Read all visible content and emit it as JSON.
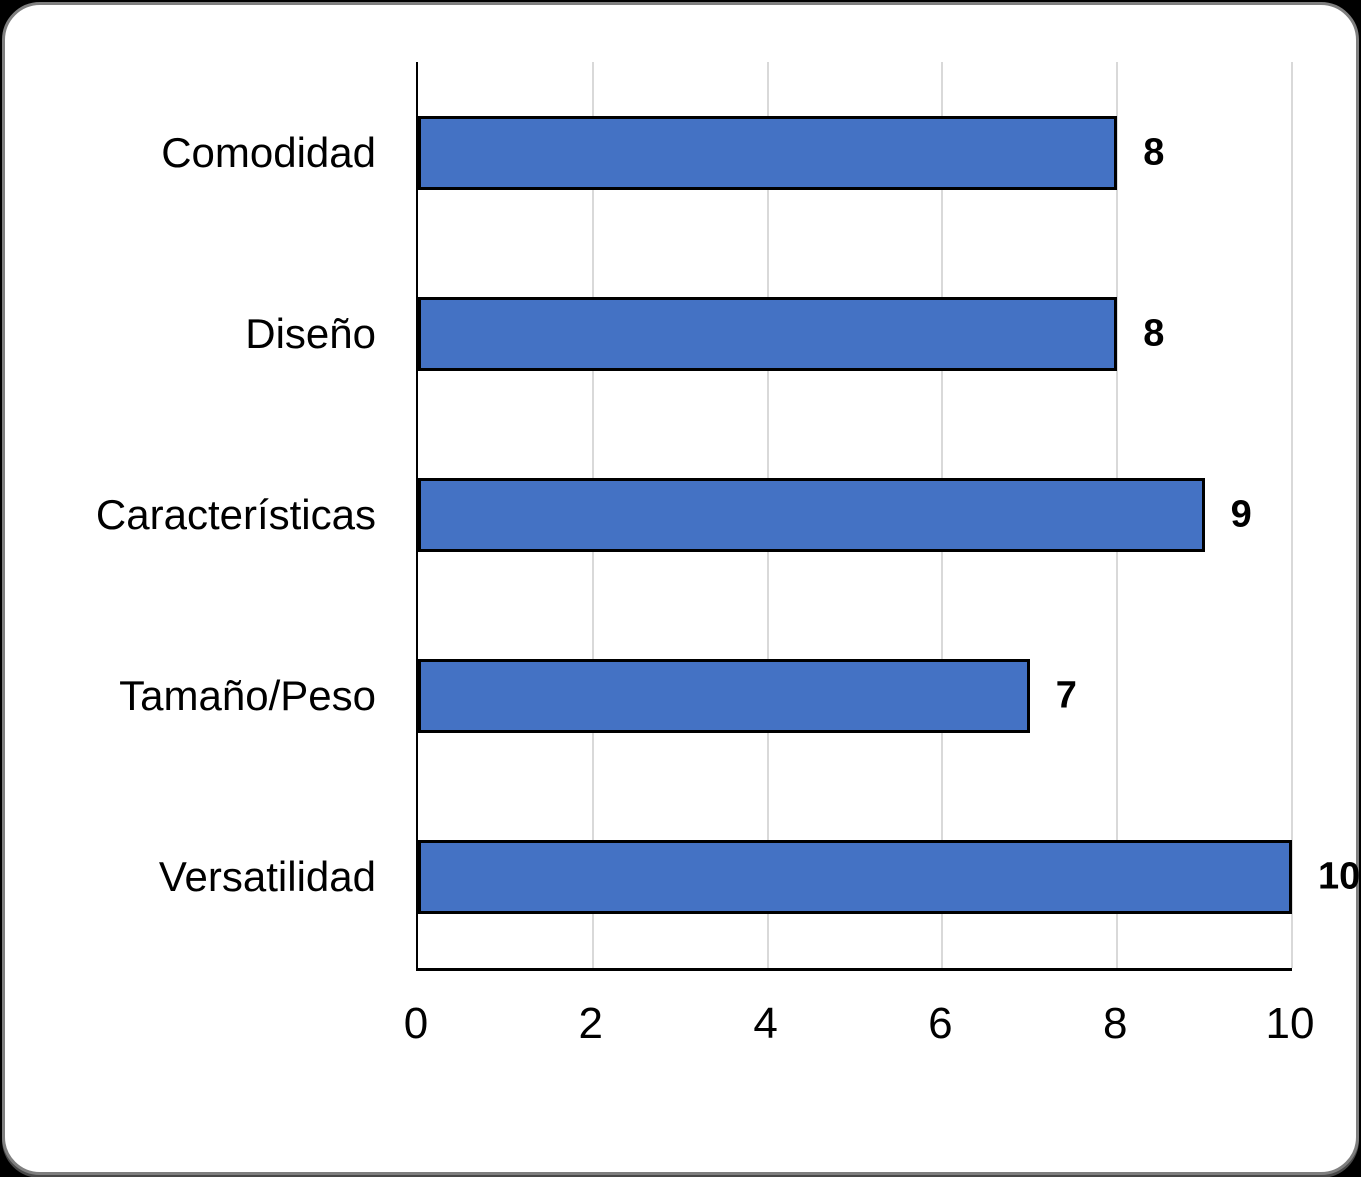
{
  "chart_data": {
    "type": "bar",
    "orientation": "horizontal",
    "title": "",
    "xlabel": "",
    "ylabel": "",
    "categories": [
      "Comodidad",
      "Diseño",
      "Características",
      "Tamaño/Peso",
      "Versatilidad"
    ],
    "values": [
      8,
      8,
      9,
      7,
      10
    ],
    "data_labels": [
      "8",
      "8",
      "9",
      "7",
      "10"
    ],
    "x_ticks": [
      "0",
      "2",
      "4",
      "6",
      "8",
      "10"
    ],
    "xlim": [
      0,
      10
    ],
    "grid": "vertical-gridlines-on",
    "legend": "none",
    "colors": {
      "bar_fill": "#4472C4",
      "bar_border": "#000000",
      "gridline": "#D9D9D9",
      "axis_line": "#000000",
      "text": "#000000",
      "card_background": "#FFFFFF",
      "frame_border": "#7F7F7F",
      "page_background": "#000000"
    }
  }
}
